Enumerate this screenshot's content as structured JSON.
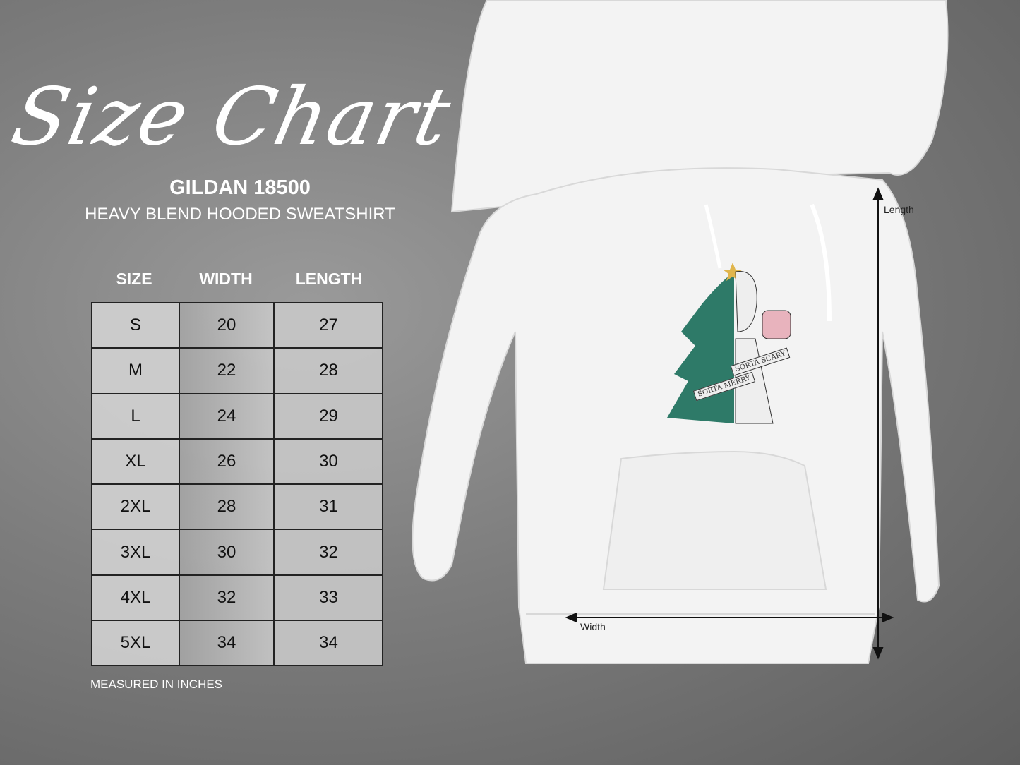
{
  "title": "Size Chart",
  "brand": "GILDAN 18500",
  "subtitle": "HEAVY BLEND HOODED SWEATSHIRT",
  "table": {
    "headers": [
      "SIZE",
      "WIDTH",
      "LENGTH"
    ],
    "rows": [
      [
        "S",
        "20",
        "27"
      ],
      [
        "M",
        "22",
        "28"
      ],
      [
        "L",
        "24",
        "29"
      ],
      [
        "XL",
        "26",
        "30"
      ],
      [
        "2XL",
        "28",
        "31"
      ],
      [
        "3XL",
        "30",
        "32"
      ],
      [
        "4XL",
        "32",
        "33"
      ],
      [
        "5XL",
        "34",
        "34"
      ]
    ]
  },
  "note": "MEASURED IN INCHES",
  "diagram": {
    "length_label": "Length",
    "width_label": "Width"
  },
  "graphic": {
    "banner_left": "SORTA MERRY",
    "banner_right": "SORTA SCARY"
  },
  "colors": {
    "hoodie": "#f2f2f2",
    "tree": "#2e7a68",
    "mug": "#e8b3bd"
  }
}
